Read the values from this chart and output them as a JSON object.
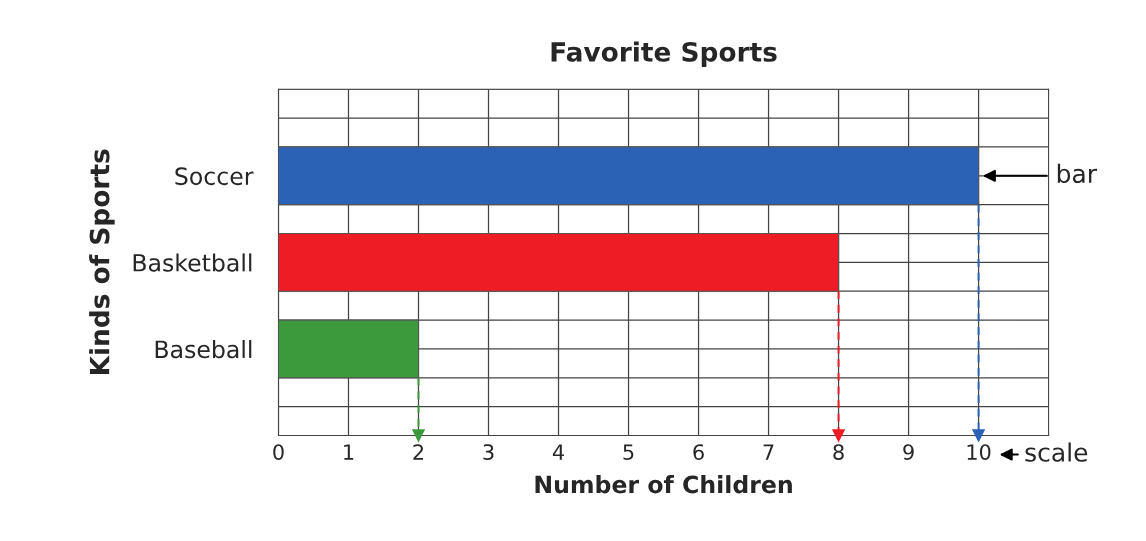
{
  "chart_data": {
    "type": "bar",
    "orientation": "horizontal",
    "title": "Favorite Sports",
    "xlabel": "Number of Children",
    "ylabel": "Kinds of Sports",
    "categories": [
      "Soccer",
      "Basketball",
      "Baseball"
    ],
    "values": [
      10,
      8,
      2
    ],
    "colors": [
      "#2b62b5",
      "#ee1c25",
      "#3c9a3c"
    ],
    "xlim": [
      0,
      11
    ],
    "xticks": [
      0,
      1,
      2,
      3,
      4,
      5,
      6,
      7,
      8,
      9,
      10
    ],
    "grid": true,
    "ref_lines": [
      {
        "axis": "x",
        "value": 2,
        "color": "#3c9a3c",
        "line_style": "dashed"
      },
      {
        "axis": "x",
        "value": 8,
        "color": "#ee1c25",
        "line_style": "dashed"
      },
      {
        "axis": "x",
        "value": 10,
        "color": "#2b62b5",
        "line_style": "dashed"
      }
    ],
    "annotations": [
      {
        "text": "bar",
        "x": 10,
        "y": "Soccer"
      },
      "scale"
    ]
  }
}
